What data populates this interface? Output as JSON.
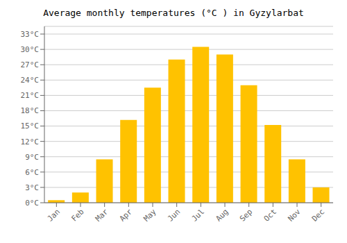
{
  "chart_data": {
    "type": "bar",
    "title": "Average monthly temperatures (°C ) in Gyzylarbat",
    "categories": [
      "Jan",
      "Feb",
      "Mar",
      "Apr",
      "May",
      "Jun",
      "Jul",
      "Aug",
      "Sep",
      "Oct",
      "Nov",
      "Dec"
    ],
    "values": [
      0.5,
      2.0,
      8.5,
      16.2,
      22.5,
      28.0,
      30.5,
      29.0,
      23.0,
      15.2,
      8.5,
      3.0
    ],
    "color": "#FFC200",
    "ylim": [
      0,
      34.5
    ],
    "yticks": [
      {
        "value": 0,
        "label": "0°C"
      },
      {
        "value": 3,
        "label": "3°C"
      },
      {
        "value": 6,
        "label": "6°C"
      },
      {
        "value": 9,
        "label": "9°C"
      },
      {
        "value": 12,
        "label": "12°C"
      },
      {
        "value": 15,
        "label": "15°C"
      },
      {
        "value": 18,
        "label": "18°C"
      },
      {
        "value": 21,
        "label": "21°C"
      },
      {
        "value": 24,
        "label": "24°C"
      },
      {
        "value": 27,
        "label": "27°C"
      },
      {
        "value": 30,
        "label": "30°C"
      },
      {
        "value": 33,
        "label": "33°C"
      }
    ],
    "grid": true
  }
}
